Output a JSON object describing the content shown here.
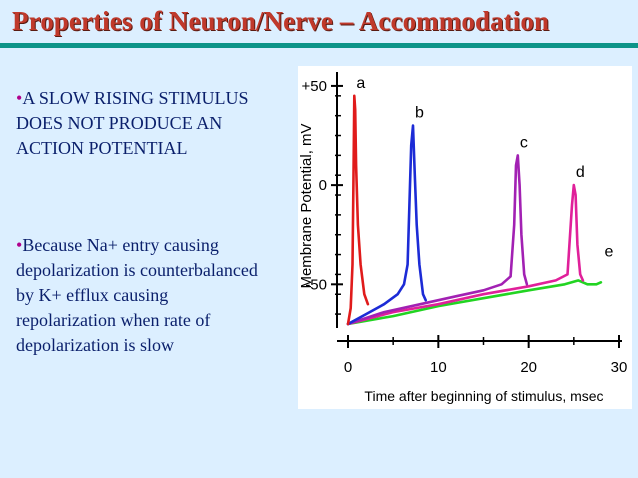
{
  "slide": {
    "title": "Properties of Neuron/Nerve – Accommodation",
    "bullets": [
      {
        "marker": "•",
        "text": "A SLOW RISING STIMULUS DOES NOT PRODUCE AN ACTION POTENTIAL"
      },
      {
        "marker": "•",
        "text": "Because Na+ entry causing depolarization is counterbalanced by K+ efflux causing repolarization when rate of depolarization is slow"
      }
    ]
  },
  "chart_data": {
    "type": "line",
    "xlabel": "Time after beginning of stimulus, msec",
    "ylabel": "Membrane Potential, mV",
    "x_ticks": [
      "0",
      "10",
      "20",
      "30"
    ],
    "y_ticks": [
      "+50",
      "0",
      "-50"
    ],
    "xlim": [
      0,
      30
    ],
    "ylim": [
      -70,
      55
    ],
    "series": [
      {
        "name": "a",
        "color": "#e01b1b",
        "points": [
          [
            0,
            -70
          ],
          [
            0.3,
            -62
          ],
          [
            0.5,
            -40
          ],
          [
            0.6,
            0
          ],
          [
            0.7,
            45
          ],
          [
            0.8,
            38
          ],
          [
            0.9,
            10
          ],
          [
            1.1,
            -20
          ],
          [
            1.4,
            -40
          ],
          [
            1.8,
            -55
          ],
          [
            2.2,
            -60
          ]
        ]
      },
      {
        "name": "b",
        "color": "#1c2bd6",
        "points": [
          [
            0,
            -70
          ],
          [
            2,
            -65
          ],
          [
            4,
            -60
          ],
          [
            5.5,
            -55
          ],
          [
            6.2,
            -50
          ],
          [
            6.6,
            -40
          ],
          [
            6.8,
            -10
          ],
          [
            7.0,
            20
          ],
          [
            7.2,
            30
          ],
          [
            7.4,
            5
          ],
          [
            7.6,
            -20
          ],
          [
            7.9,
            -40
          ],
          [
            8.3,
            -55
          ],
          [
            8.6,
            -58
          ]
        ]
      },
      {
        "name": "c",
        "color": "#a221b3",
        "points": [
          [
            0,
            -70
          ],
          [
            4,
            -64
          ],
          [
            8,
            -60
          ],
          [
            12,
            -56
          ],
          [
            15,
            -53
          ],
          [
            17,
            -50
          ],
          [
            18,
            -46
          ],
          [
            18.4,
            -20
          ],
          [
            18.6,
            10
          ],
          [
            18.8,
            15
          ],
          [
            19.0,
            0
          ],
          [
            19.2,
            -25
          ],
          [
            19.5,
            -45
          ],
          [
            19.8,
            -50
          ]
        ]
      },
      {
        "name": "d",
        "color": "#e0209a",
        "points": [
          [
            0,
            -70
          ],
          [
            5,
            -64
          ],
          [
            10,
            -60
          ],
          [
            15,
            -55
          ],
          [
            20,
            -51
          ],
          [
            23,
            -48
          ],
          [
            24.3,
            -45
          ],
          [
            24.8,
            -10
          ],
          [
            25,
            0
          ],
          [
            25.2,
            -5
          ],
          [
            25.4,
            -30
          ],
          [
            25.7,
            -45
          ],
          [
            26,
            -48
          ]
        ]
      },
      {
        "name": "e",
        "color": "#22d422",
        "points": [
          [
            0,
            -70
          ],
          [
            5,
            -66
          ],
          [
            10,
            -61
          ],
          [
            15,
            -57
          ],
          [
            20,
            -53
          ],
          [
            24,
            -50
          ],
          [
            25.5,
            -48
          ],
          [
            26.5,
            -50
          ],
          [
            27.5,
            -50
          ],
          [
            28,
            -49
          ]
        ]
      }
    ]
  }
}
